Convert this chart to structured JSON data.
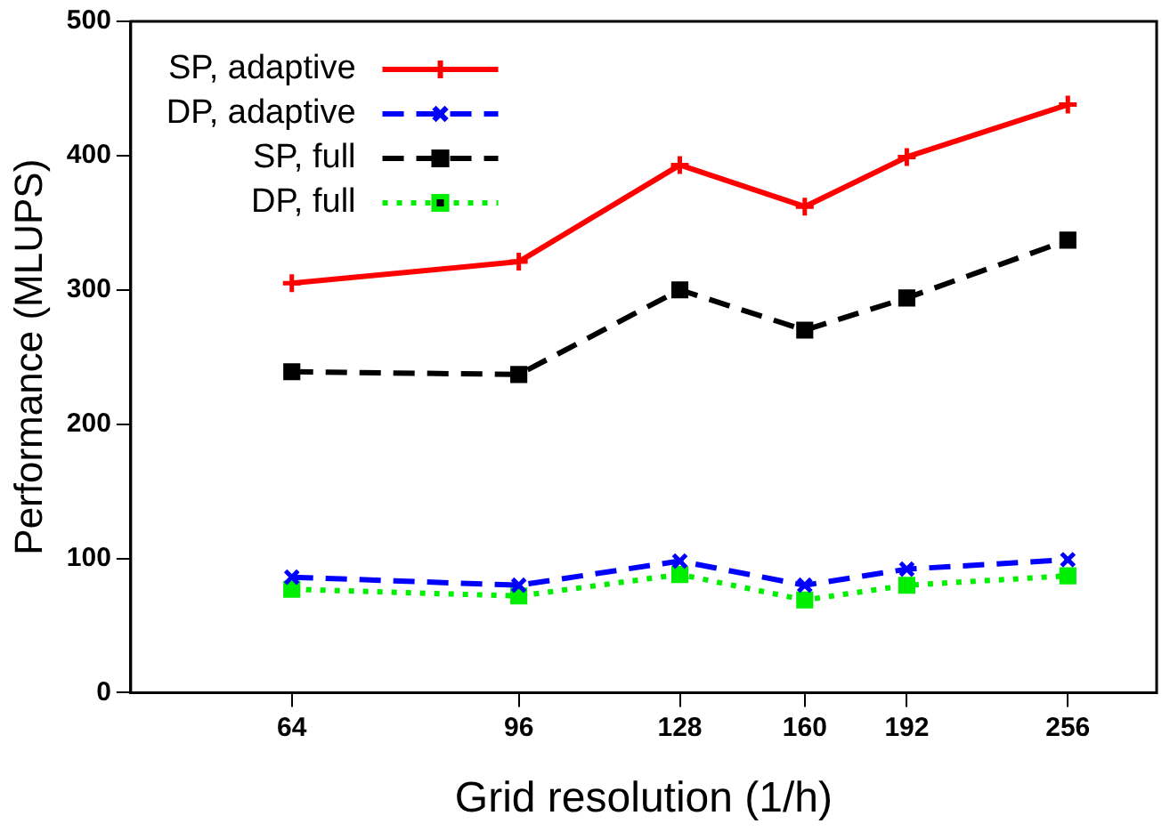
{
  "chart_data": {
    "type": "line",
    "xlabel": "Grid resolution (1/h)",
    "ylabel": "Performance (MLUPS)",
    "x": [
      64,
      96,
      128,
      160,
      192,
      256
    ],
    "log": "x",
    "xlim": [
      48,
      300
    ],
    "xticks": [
      64,
      96,
      128,
      160,
      192,
      256
    ],
    "ylim": [
      0,
      500
    ],
    "yticks": [
      0,
      100,
      200,
      300,
      400,
      500
    ],
    "grid": false,
    "legend": "top left",
    "series": [
      {
        "name": "SP, adaptive",
        "color": "#ff0000",
        "marker": "cross",
        "line_style": "solid",
        "values": [
          305,
          321,
          393,
          362,
          399,
          438
        ]
      },
      {
        "name": "DP, adaptive",
        "color": "#0000ff",
        "marker": "cross",
        "line_style": "dashed",
        "values": [
          86,
          80,
          98,
          80,
          92,
          99
        ]
      },
      {
        "name": "SP, full",
        "color": "#000000",
        "marker": "square",
        "line_style": "dashed",
        "values": [
          239,
          237,
          300,
          270,
          294,
          337
        ]
      },
      {
        "name": "DP, full",
        "color": "#00ee00",
        "marker": "square",
        "line_style": "dotted",
        "values": [
          77,
          72,
          88,
          69,
          80,
          87
        ]
      }
    ]
  }
}
